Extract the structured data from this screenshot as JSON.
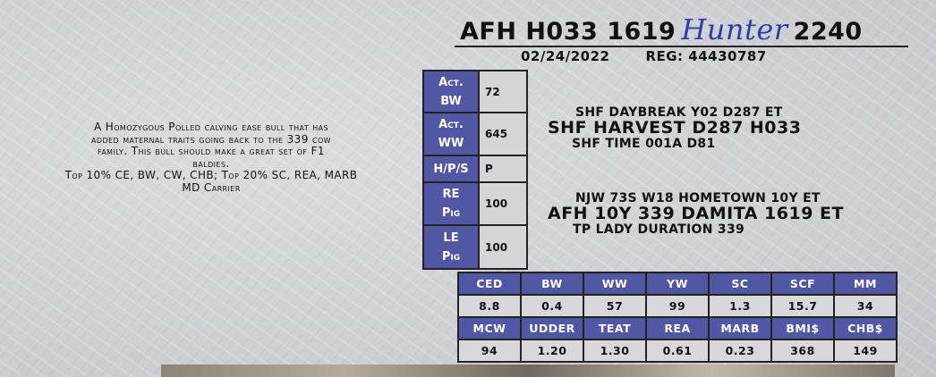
{
  "header": {
    "prefix": "AFH H033 1619",
    "name": "Hunter",
    "suffix": "2240",
    "date": "02/24/2022",
    "reg": "REG: 44430787"
  },
  "description": [
    "A Homozygous Polled calving ease bull that has",
    "added maternal traits going back to the 339 cow",
    "family.  This bull should make a great set of F1",
    "baldies.",
    "Top 10% CE, BW, CW, CHB; Top 20% SC, REA, MARB",
    "MD Carrier"
  ],
  "actuals": [
    {
      "label1": "Act.",
      "label2": "BW",
      "value": "72"
    },
    {
      "label1": "Act.",
      "label2": "WW",
      "value": "645"
    },
    {
      "label1": "H/P/S",
      "label2": "",
      "value": "P"
    },
    {
      "label1": "RE",
      "label2": "Pig",
      "value": "100"
    },
    {
      "label1": "LE",
      "label2": "Pig",
      "value": "100"
    }
  ],
  "pedigree": {
    "sire": {
      "sire": "SHF DAYBREAK Y02 D287 ET",
      "name": "SHF HARVEST D287 H033",
      "dam": "SHF TIME 001A D81"
    },
    "dam": {
      "sire": "NJW 73S W18 HOMETOWN 10Y ET",
      "name": "AFH 10Y 339 DAMITA 1619 ET",
      "dam": "TP LADY DURATION 339"
    }
  },
  "epds": {
    "row1_headers": [
      "CED",
      "BW",
      "WW",
      "YW",
      "SC",
      "SCF",
      "MM"
    ],
    "row1_values": [
      "8.8",
      "0.4",
      "57",
      "99",
      "1.3",
      "15.7",
      "34"
    ],
    "row2_headers": [
      "MCW",
      "UDDER",
      "TEAT",
      "REA",
      "MARB",
      "BMI$",
      "CHB$"
    ],
    "row2_values": [
      "94",
      "1.20",
      "1.30",
      "0.61",
      "0.23",
      "368",
      "149"
    ]
  },
  "colors": {
    "header_blue": "#5157a3",
    "script_blue": "#2d3fa8"
  }
}
